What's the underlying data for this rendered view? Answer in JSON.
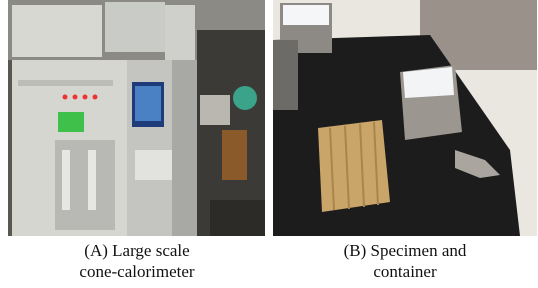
{
  "panels": [
    {
      "caption": [
        "(A) Large scale",
        "cone-calorimeter"
      ]
    },
    {
      "caption": [
        "(B) Specimen and",
        "container"
      ]
    }
  ]
}
